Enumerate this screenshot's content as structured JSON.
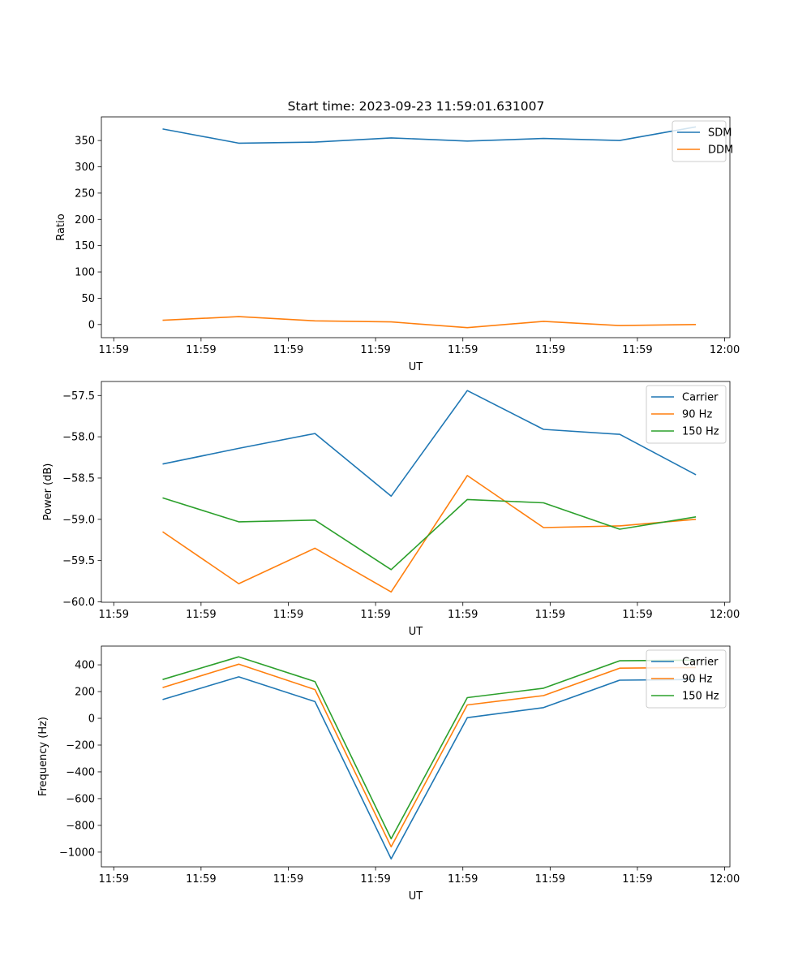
{
  "figure_title": "Start time: 2023-09-23 11:59:01.631007",
  "chart_data": [
    {
      "type": "line",
      "title": "Start time: 2023-09-23 11:59:01.631007",
      "xlabel": "UT",
      "ylabel": "Ratio",
      "x_tick_labels": [
        "11:59",
        "11:59",
        "11:59",
        "11:59",
        "11:59",
        "11:59",
        "11:59",
        "12:00"
      ],
      "x": [
        1.5,
        2.5,
        3.5,
        4.5,
        5.5,
        6.5,
        7.5,
        8.5
      ],
      "xlim": [
        0,
        9.24
      ],
      "ylim": [
        -25,
        395
      ],
      "y_ticks": [
        0,
        50,
        100,
        150,
        200,
        250,
        300,
        350
      ],
      "legend_position": "upper right",
      "series": [
        {
          "name": "SDM",
          "color": "#1f77b4",
          "values": [
            372,
            345,
            347,
            355,
            349,
            354,
            350,
            376
          ]
        },
        {
          "name": "DDM",
          "color": "#ff7f0e",
          "values": [
            8,
            15,
            7,
            5,
            -6,
            6,
            -2,
            0
          ]
        }
      ]
    },
    {
      "type": "line",
      "title": "",
      "xlabel": "UT",
      "ylabel": "Power (dB)",
      "x_tick_labels": [
        "11:59",
        "11:59",
        "11:59",
        "11:59",
        "11:59",
        "11:59",
        "11:59",
        "12:00"
      ],
      "x": [
        1.5,
        2.5,
        3.5,
        4.5,
        5.5,
        6.5,
        7.5,
        8.5
      ],
      "xlim": [
        0,
        9.24
      ],
      "ylim": [
        -60.005,
        -57.33
      ],
      "y_ticks": [
        -60.0,
        -59.5,
        -59.0,
        -58.5,
        -58.0,
        -57.5
      ],
      "y_tick_labels": [
        "−60.0",
        "−59.5",
        "−59.0",
        "−58.5",
        "−58.0",
        "−57.5"
      ],
      "legend_position": "upper right",
      "series": [
        {
          "name": "Carrier",
          "color": "#1f77b4",
          "values": [
            -58.33,
            -58.14,
            -57.96,
            -58.72,
            -57.44,
            -57.91,
            -57.97,
            -58.46
          ]
        },
        {
          "name": "90 Hz",
          "color": "#ff7f0e",
          "values": [
            -59.15,
            -59.78,
            -59.35,
            -59.88,
            -58.47,
            -59.1,
            -59.08,
            -59.0
          ]
        },
        {
          "name": "150 Hz",
          "color": "#2ca02c",
          "values": [
            -58.74,
            -59.03,
            -59.01,
            -59.61,
            -58.76,
            -58.8,
            -59.12,
            -58.97
          ]
        }
      ]
    },
    {
      "type": "line",
      "title": "",
      "xlabel": "UT",
      "ylabel": "Frequency (Hz)",
      "x_tick_labels": [
        "11:59",
        "11:59",
        "11:59",
        "11:59",
        "11:59",
        "11:59",
        "11:59",
        "12:00"
      ],
      "x": [
        1.5,
        2.5,
        3.5,
        4.5,
        5.5,
        6.5,
        7.5,
        8.5
      ],
      "xlim": [
        0,
        9.24
      ],
      "ylim": [
        -1110,
        540
      ],
      "y_ticks": [
        -1000,
        -800,
        -600,
        -400,
        -200,
        0,
        200,
        400
      ],
      "y_tick_labels": [
        "−1000",
        "−800",
        "−600",
        "−400",
        "−200",
        "0",
        "200",
        "400"
      ],
      "legend_position": "upper right",
      "series": [
        {
          "name": "Carrier",
          "color": "#1f77b4",
          "values": [
            140,
            310,
            125,
            -1050,
            5,
            80,
            285,
            290
          ]
        },
        {
          "name": "90 Hz",
          "color": "#ff7f0e",
          "values": [
            230,
            405,
            215,
            -960,
            100,
            170,
            375,
            380
          ]
        },
        {
          "name": "150 Hz",
          "color": "#2ca02c",
          "values": [
            290,
            460,
            275,
            -900,
            155,
            225,
            430,
            435
          ]
        }
      ]
    }
  ]
}
